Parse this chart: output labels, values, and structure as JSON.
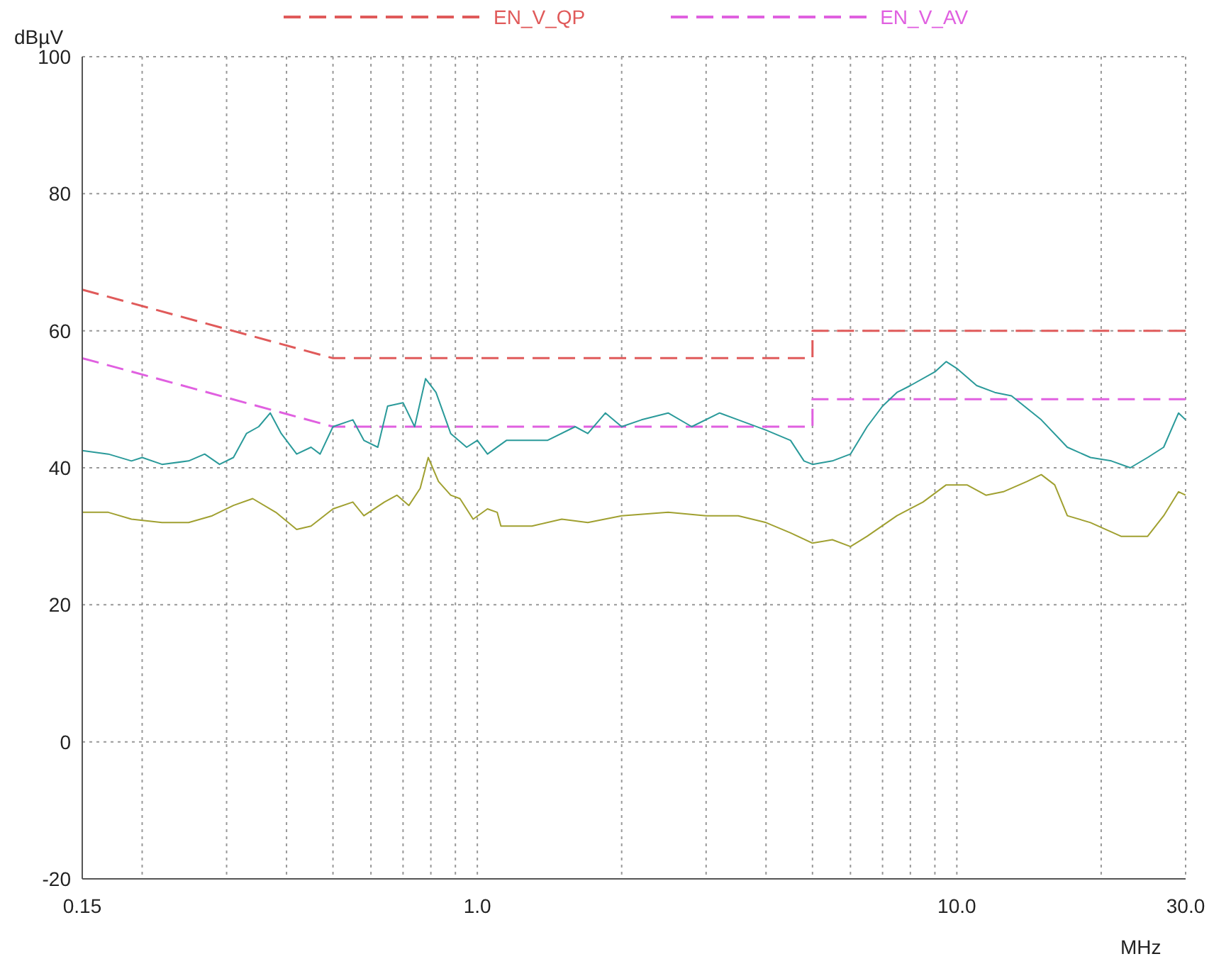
{
  "chart_data": {
    "type": "line",
    "xlabel": "MHz",
    "ylabel": "dBµV",
    "log": "x",
    "grid": true,
    "legend": "top",
    "marker": "none",
    "xlim": [
      0.15,
      30
    ],
    "ylim": [
      -20,
      100
    ],
    "yticks": [
      -20,
      0,
      20,
      40,
      60,
      80,
      100
    ],
    "xticks": [
      {
        "value": 0.15,
        "label": "0.15"
      },
      {
        "value": 0.2,
        "label": null
      },
      {
        "value": 0.3,
        "label": null
      },
      {
        "value": 0.4,
        "label": null
      },
      {
        "value": 0.5,
        "label": null
      },
      {
        "value": 0.6,
        "label": null
      },
      {
        "value": 0.7,
        "label": null
      },
      {
        "value": 0.8,
        "label": null
      },
      {
        "value": 0.9,
        "label": null
      },
      {
        "value": 1,
        "label": "1.0"
      },
      {
        "value": 2,
        "label": null
      },
      {
        "value": 3,
        "label": null
      },
      {
        "value": 4,
        "label": null
      },
      {
        "value": 5,
        "label": null
      },
      {
        "value": 6,
        "label": null
      },
      {
        "value": 7,
        "label": null
      },
      {
        "value": 8,
        "label": null
      },
      {
        "value": 9,
        "label": null
      },
      {
        "value": 10,
        "label": "10.0"
      },
      {
        "value": 20,
        "label": null
      },
      {
        "value": 30,
        "label": "30.0"
      }
    ],
    "series": [
      {
        "name": "EN_V_QP",
        "color": "#e05a5a",
        "line_style": "dashed",
        "x": [
          0.15,
          0.5,
          5,
          5,
          30
        ],
        "values": [
          66,
          56,
          56,
          60,
          60
        ]
      },
      {
        "name": "EN_V_AV",
        "color": "#e060e0",
        "line_style": "dashed",
        "x": [
          0.15,
          0.5,
          5,
          5,
          30
        ],
        "values": [
          56,
          46,
          46,
          50,
          50
        ]
      },
      {
        "color": "#2a9a9a",
        "line_style": "solid",
        "x": [
          0.15,
          0.17,
          0.19,
          0.2,
          0.22,
          0.25,
          0.27,
          0.29,
          0.31,
          0.33,
          0.35,
          0.37,
          0.39,
          0.42,
          0.45,
          0.47,
          0.5,
          0.55,
          0.58,
          0.62,
          0.65,
          0.7,
          0.74,
          0.78,
          0.82,
          0.88,
          0.95,
          1.0,
          1.05,
          1.15,
          1.25,
          1.4,
          1.6,
          1.7,
          1.85,
          2.0,
          2.2,
          2.5,
          2.8,
          3.2,
          3.5,
          4.0,
          4.5,
          4.8,
          5.0,
          5.5,
          6.0,
          6.5,
          7.0,
          7.5,
          8.0,
          9.0,
          9.5,
          10,
          11,
          12,
          13,
          15,
          17,
          19,
          21,
          23,
          25,
          27,
          29,
          30
        ],
        "values": [
          42.5,
          42,
          41,
          41.5,
          40.5,
          41,
          42,
          40.5,
          41.5,
          45,
          46,
          48,
          45,
          42,
          43,
          42,
          46,
          47,
          44,
          43,
          49,
          49.5,
          46,
          53,
          51,
          45,
          43,
          44,
          42,
          44,
          44,
          44,
          46,
          45,
          48,
          46,
          47,
          48,
          46,
          48,
          47,
          45.5,
          44,
          41,
          40.5,
          41,
          42,
          46,
          49,
          51,
          52,
          54,
          55.5,
          54.5,
          52,
          51,
          50.5,
          47,
          43,
          41.5,
          41,
          40,
          41.5,
          43,
          48,
          47
        ]
      },
      {
        "color": "#a0a030",
        "line_style": "solid",
        "x": [
          0.15,
          0.17,
          0.19,
          0.22,
          0.25,
          0.28,
          0.31,
          0.34,
          0.38,
          0.42,
          0.45,
          0.5,
          0.55,
          0.58,
          0.64,
          0.68,
          0.72,
          0.76,
          0.79,
          0.83,
          0.88,
          0.92,
          0.98,
          1.05,
          1.1,
          1.12,
          1.3,
          1.5,
          1.7,
          2.0,
          2.5,
          3.0,
          3.5,
          4.0,
          4.5,
          5.0,
          5.5,
          6.0,
          6.5,
          7.5,
          8.5,
          9.5,
          10.5,
          11.5,
          12.5,
          14,
          15,
          16,
          17,
          19,
          22,
          25,
          27,
          29,
          30
        ],
        "values": [
          33.5,
          33.5,
          32.5,
          32,
          32,
          33,
          34.5,
          35.5,
          33.5,
          31,
          31.5,
          34,
          35,
          33,
          35,
          36,
          34.5,
          37,
          41.5,
          38,
          36,
          35.5,
          32.5,
          34,
          33.5,
          31.5,
          31.5,
          32.5,
          32,
          33,
          33.5,
          33,
          33,
          32,
          30.5,
          29,
          29.5,
          28.5,
          30,
          33,
          35,
          37.5,
          37.5,
          36,
          36.5,
          38,
          39,
          37.5,
          33,
          32,
          30,
          30,
          33,
          36.5,
          36
        ]
      }
    ]
  }
}
